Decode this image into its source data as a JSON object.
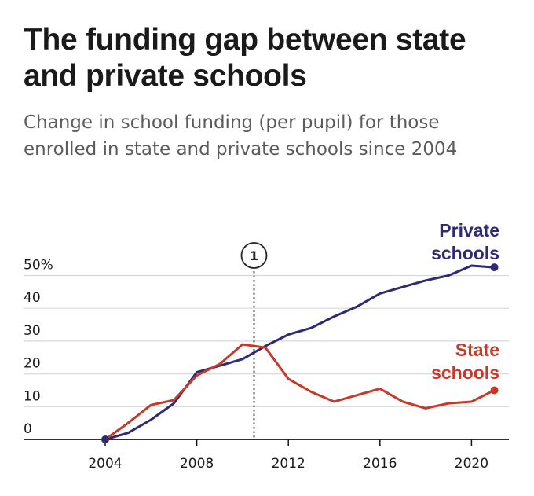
{
  "title": "The funding gap between state and private schools",
  "subtitle": "Change in school funding (per pupil) for those enrolled in state and private schools since 2004",
  "colors": {
    "private": "#2e2a74",
    "state": "#c63a2b",
    "grid": "#d9d9d9",
    "axis": "#111111",
    "annotation": "#888888"
  },
  "chart_data": {
    "type": "line",
    "title": "The funding gap between state and private schools",
    "subtitle": "Change in school funding (per pupil) for those enrolled in state and private schools since 2004",
    "xlim": [
      2004,
      2021
    ],
    "ylim": [
      0,
      50
    ],
    "x_ticks": [
      2004,
      2008,
      2012,
      2016,
      2020
    ],
    "y_ticks": [
      0,
      10,
      20,
      30,
      40,
      50
    ],
    "y_tick_labels": [
      "0",
      "10",
      "20",
      "30",
      "40",
      "50%"
    ],
    "grid": "horizontal",
    "annotation": {
      "label": "1",
      "x": 2010.5
    },
    "series": [
      {
        "name": "Private schools",
        "label_lines": [
          "Private",
          "schools"
        ],
        "color": "#2e2a74",
        "x": [
          2004,
          2005,
          2006,
          2007,
          2008,
          2009,
          2010,
          2011,
          2012,
          2013,
          2014,
          2015,
          2016,
          2017,
          2018,
          2019,
          2020,
          2021
        ],
        "values": [
          0,
          2,
          6,
          11,
          20.5,
          22.5,
          24.5,
          28.5,
          32,
          34,
          37.5,
          40.5,
          44.5,
          46.5,
          48.5,
          50,
          53,
          52.5
        ]
      },
      {
        "name": "State schools",
        "label_lines": [
          "State",
          "schools"
        ],
        "color": "#c63a2b",
        "x": [
          2004,
          2005,
          2006,
          2007,
          2008,
          2009,
          2010,
          2011,
          2012,
          2013,
          2014,
          2015,
          2016,
          2017,
          2018,
          2019,
          2020,
          2021
        ],
        "values": [
          0,
          5,
          10.5,
          12,
          19.5,
          23,
          29,
          28,
          18.5,
          14.5,
          11.5,
          13.5,
          15.5,
          11.5,
          9.5,
          11,
          11.5,
          15
        ]
      }
    ]
  }
}
